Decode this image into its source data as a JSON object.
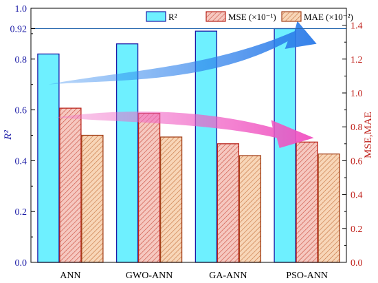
{
  "chart_data": {
    "type": "bar",
    "categories": [
      "ANN",
      "GWO-ANN",
      "GA-ANN",
      "PSO-ANN"
    ],
    "series": [
      {
        "name": "R²",
        "axis": "left",
        "values": [
          0.82,
          0.86,
          0.91,
          0.92
        ],
        "color": "#6ef0ff",
        "stroke": "#1a1aa6"
      },
      {
        "name": "MSE (×10⁻¹)",
        "axis": "right",
        "values": [
          0.91,
          0.88,
          0.7,
          0.71
        ],
        "color": "#f6c8c0",
        "stroke": "#b8221a"
      },
      {
        "name": "MAE (×10⁻²)",
        "axis": "right",
        "values": [
          0.75,
          0.74,
          0.63,
          0.64
        ],
        "color": "#f8d6b8",
        "stroke": "#a4421a"
      }
    ],
    "left_axis": {
      "label": "R²",
      "ylim": [
        0.0,
        1.0
      ],
      "ticks": [
        "0.0",
        "0.2",
        "0.4",
        "0.6",
        "0.8",
        "1.0"
      ],
      "tick_values": [
        0.0,
        0.2,
        0.4,
        0.6,
        0.8,
        1.0
      ],
      "extra_tick": {
        "label": "0.92",
        "value": 0.92
      },
      "color": "#1a1aa6"
    },
    "right_axis": {
      "label": "MSE,MAE",
      "ylim": [
        0.0,
        1.5
      ],
      "ticks": [
        "0.0",
        "0.2",
        "0.4",
        "0.6",
        "0.8",
        "1.0",
        "1.2",
        "1.4"
      ],
      "tick_values": [
        0.0,
        0.2,
        0.4,
        0.6,
        0.8,
        1.0,
        1.2,
        1.4
      ],
      "color": "#c0201a"
    },
    "reference_line": {
      "value": 0.92,
      "axis": "left"
    },
    "legend_position": "top-right",
    "grid": false,
    "trend_arrows": [
      {
        "series": "R²",
        "color": "#3a8ef0",
        "direction": "up"
      },
      {
        "series": "MSE",
        "color": "#f070c8",
        "direction": "down"
      }
    ]
  }
}
